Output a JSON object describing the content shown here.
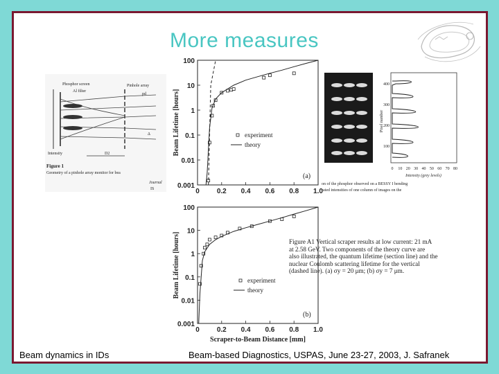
{
  "slide": {
    "title": "More measures",
    "footer_left": "Beam dynamics in IDs",
    "footer_right": "Beam-based Diagnostics, USPAS, June 23-27, 2003, J. Safranek"
  },
  "left_figure": {
    "labels": [
      "Phosphor screen",
      "Al filter",
      "Pinhole array",
      "Intensity",
      "pd",
      "Δ"
    ],
    "caption_lines": [
      "Figure 1",
      "Geometry of a pinhole array monitor for bea"
    ],
    "ref_lines": [
      "Journal",
      "IS"
    ],
    "dist_label": "D2"
  },
  "right_figure": {
    "y_axis_label": "Pixel number",
    "y_ticks": [
      "400",
      "300",
      "200",
      "100"
    ],
    "x_ticks": [
      "0",
      "10",
      "20",
      "30",
      "40",
      "50",
      "60",
      "70",
      "80"
    ],
    "x_axis_label": "Intensity (grey levels)",
    "caption_lines": [
      "on of the phosphor observed on a BESSY I bending",
      "rated intensities of one column of images on the"
    ]
  },
  "caption_a1": {
    "lines": [
      "Figure A1  Vertical scraper results at low current: 21 mA",
      "at 2.58 GeV.  Two components of the theory curve are",
      "also illustrated, the quantum lifetime (section line) and the",
      "nuclear Coulomb scattering lifetime for the vertical",
      "(dashed line).  (a) σy = 20 μm; (b) σy = 7 μm."
    ]
  },
  "chart_data": [
    {
      "type": "scatter",
      "panel": "(a)",
      "ylabel": "Beam Lifetime  [hours]",
      "xlabel": "",
      "x_ticks": [
        "0",
        "0.2",
        "0.4",
        "0.6",
        "0.8",
        "1.0"
      ],
      "y_ticks": [
        "100",
        "10",
        "1",
        "0.1",
        "0.01",
        "0.001"
      ],
      "xlim": [
        0,
        1.0
      ],
      "ylim": [
        0.001,
        100
      ],
      "y_scale": "log",
      "legend": [
        "experiment",
        "theory"
      ],
      "series": [
        {
          "name": "experiment",
          "x": [
            0.09,
            0.1,
            0.12,
            0.13,
            0.15,
            0.2,
            0.25,
            0.28,
            0.3,
            0.55,
            0.6,
            0.8
          ],
          "y": [
            0.0015,
            0.05,
            0.6,
            1.5,
            2.5,
            5,
            6,
            6.5,
            7,
            20,
            25,
            30
          ]
        },
        {
          "name": "theory",
          "x": [
            0.07,
            0.08,
            0.1,
            0.12,
            0.15,
            0.2,
            0.3,
            0.4,
            0.5,
            0.6,
            0.7,
            0.8,
            0.9,
            1.0
          ],
          "y": [
            0.001,
            0.003,
            0.2,
            1.2,
            2.8,
            5,
            10,
            16,
            22,
            30,
            40,
            55,
            75,
            100
          ]
        },
        {
          "name": "",
          "x": [
            0.09,
            0.11,
            0.15,
            0.2,
            0.3,
            0.45
          ],
          "y": [
            0.001,
            10,
            100,
            100,
            100,
            100
          ]
        }
      ]
    },
    {
      "type": "scatter",
      "panel": "(b)",
      "ylabel": "Beam Lifetime  [hours]",
      "xlabel": "Scraper-to-Beam  Distance  [mm]",
      "x_ticks": [
        "0",
        "0.2",
        "0.4",
        "0.6",
        "0.8",
        "1.0"
      ],
      "y_ticks": [
        "100",
        "10",
        "1",
        "0.1",
        "0.01",
        "0.001"
      ],
      "xlim": [
        0,
        1.0
      ],
      "ylim": [
        0.001,
        100
      ],
      "y_scale": "log",
      "legend": [
        "experiment",
        "theory"
      ],
      "series": [
        {
          "name": "experiment",
          "x": [
            0.02,
            0.03,
            0.05,
            0.06,
            0.08,
            0.1,
            0.15,
            0.2,
            0.25,
            0.35,
            0.45,
            0.6,
            0.7,
            0.8
          ],
          "y": [
            0.05,
            0.3,
            1,
            1.8,
            2.5,
            4,
            5,
            6,
            8,
            12,
            15,
            25,
            30,
            40
          ]
        },
        {
          "name": "theory",
          "x": [
            0.01,
            0.02,
            0.04,
            0.06,
            0.1,
            0.15,
            0.2,
            0.3,
            0.4,
            0.5,
            0.6,
            0.7,
            0.8,
            0.9,
            1.0
          ],
          "y": [
            0.001,
            0.02,
            0.5,
            1.2,
            2.5,
            4,
            5.5,
            9,
            13,
            18,
            25,
            35,
            50,
            70,
            100
          ]
        }
      ]
    }
  ]
}
